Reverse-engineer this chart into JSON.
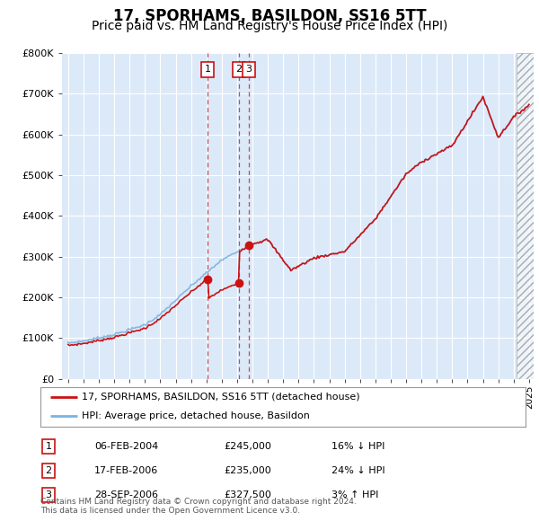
{
  "title": "17, SPORHAMS, BASILDON, SS16 5TT",
  "subtitle": "Price paid vs. HM Land Registry's House Price Index (HPI)",
  "title_fontsize": 12,
  "subtitle_fontsize": 10,
  "plot_bg_color": "#dce9f8",
  "ylim": [
    0,
    800000
  ],
  "yticks": [
    0,
    100000,
    200000,
    300000,
    400000,
    500000,
    600000,
    700000,
    800000
  ],
  "sale_dates": [
    2004.09,
    2006.12,
    2006.75
  ],
  "sale_prices": [
    245000,
    235000,
    327500
  ],
  "sale_labels": [
    "1",
    "2",
    "3"
  ],
  "hpi_color": "#7ab3e0",
  "sale_color": "#cc1111",
  "legend_label_sale": "17, SPORHAMS, BASILDON, SS16 5TT (detached house)",
  "legend_label_hpi": "HPI: Average price, detached house, Basildon",
  "table_data": [
    [
      "1",
      "06-FEB-2004",
      "£245,000",
      "16% ↓ HPI"
    ],
    [
      "2",
      "17-FEB-2006",
      "£235,000",
      "24% ↓ HPI"
    ],
    [
      "3",
      "28-SEP-2006",
      "£327,500",
      "3% ↑ HPI"
    ]
  ],
  "footer": "Contains HM Land Registry data © Crown copyright and database right 2024.\nThis data is licensed under the Open Government Licence v3.0.",
  "hatch_region_start": 2024.17,
  "hatch_region_end": 2025.3,
  "xlim_left": 1994.6,
  "xlim_right": 2025.3
}
